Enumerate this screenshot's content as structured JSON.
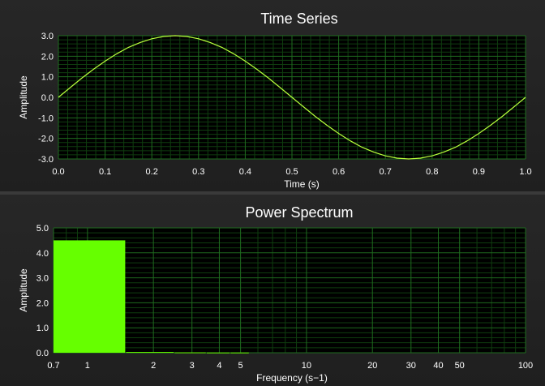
{
  "colors": {
    "plot_background": "#000000",
    "grid_major": "#1f6b1f",
    "grid_minor": "#0f3d0f",
    "line": "#b8ff3c",
    "bar": "#66ff00"
  },
  "chart_data": [
    {
      "type": "line",
      "title": "Time Series",
      "xlabel": "Time (s)",
      "ylabel": "Amplitude",
      "xlim": [
        0.0,
        1.0
      ],
      "ylim": [
        -3.0,
        3.0
      ],
      "x_ticks": [
        "0.0",
        "0.1",
        "0.2",
        "0.3",
        "0.4",
        "0.5",
        "0.6",
        "0.7",
        "0.8",
        "0.9",
        "1.0"
      ],
      "x_tick_values": [
        0,
        0.1,
        0.2,
        0.3,
        0.4,
        0.5,
        0.6,
        0.7,
        0.8,
        0.9,
        1.0
      ],
      "y_ticks": [
        "3.0",
        "2.0",
        "1.0",
        "0.0",
        "-1.0",
        "-2.0",
        "-3.0"
      ],
      "y_tick_values": [
        3,
        2,
        1,
        0,
        -1,
        -2,
        -3
      ],
      "grid": true,
      "series": [
        {
          "x": [
            0,
            0.025,
            0.05,
            0.075,
            0.1,
            0.125,
            0.15,
            0.175,
            0.2,
            0.225,
            0.25,
            0.275,
            0.3,
            0.325,
            0.35,
            0.375,
            0.4,
            0.425,
            0.45,
            0.475,
            0.5,
            0.525,
            0.55,
            0.575,
            0.6,
            0.625,
            0.65,
            0.675,
            0.7,
            0.725,
            0.75,
            0.775,
            0.8,
            0.825,
            0.85,
            0.875,
            0.9,
            0.925,
            0.95,
            0.975,
            1.0
          ],
          "y": [
            0,
            0.47,
            0.93,
            1.36,
            1.76,
            2.12,
            2.43,
            2.67,
            2.85,
            2.96,
            3.0,
            2.96,
            2.85,
            2.67,
            2.43,
            2.12,
            1.76,
            1.36,
            0.93,
            0.47,
            0,
            -0.47,
            -0.93,
            -1.36,
            -1.76,
            -2.12,
            -2.43,
            -2.67,
            -2.85,
            -2.96,
            -3.0,
            -2.96,
            -2.85,
            -2.67,
            -2.43,
            -2.12,
            -1.76,
            -1.36,
            -0.93,
            -0.47,
            0
          ]
        }
      ]
    },
    {
      "type": "bar",
      "title": "Power Spectrum",
      "xlabel": "Frequency (s−1)",
      "ylabel": "Amplitude",
      "x_scale": "log",
      "xlim": [
        0.7,
        100
      ],
      "ylim": [
        0.0,
        5.0
      ],
      "x_ticks": [
        "0.7",
        "1",
        "2",
        "3",
        "4",
        "5",
        "10",
        "20",
        "30",
        "40",
        "50",
        "100"
      ],
      "x_tick_values": [
        0.7,
        1,
        2,
        3,
        4,
        5,
        10,
        20,
        30,
        40,
        50,
        100
      ],
      "y_ticks": [
        "5.0",
        "4.0",
        "3.0",
        "2.0",
        "1.0",
        "0.0"
      ],
      "y_tick_values": [
        5,
        4,
        3,
        2,
        1,
        0
      ],
      "grid": true,
      "bars": [
        {
          "x0": 0.7,
          "x1": 1.5,
          "value": 4.5
        },
        {
          "x0": 1.5,
          "x1": 2.5,
          "value": 0.03
        },
        {
          "x0": 2.5,
          "x1": 3.5,
          "value": 0.015
        },
        {
          "x0": 3.5,
          "x1": 4.5,
          "value": 0.01
        },
        {
          "x0": 4.5,
          "x1": 5.5,
          "value": 0.01
        }
      ]
    }
  ]
}
